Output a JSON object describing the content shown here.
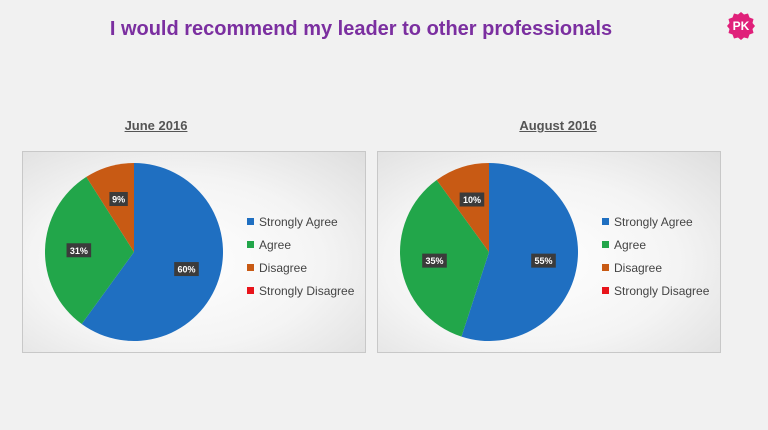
{
  "page": {
    "title": "I would recommend my leader to other professionals"
  },
  "logo": {
    "text": "PK",
    "color": "#e0207a",
    "icon": "pk-logo-icon"
  },
  "colors": {
    "Strongly Agree": "#1f6fc1",
    "Agree": "#22a64a",
    "Disagree": "#c85a14",
    "Strongly Disagree": "#e8141b"
  },
  "chart_data": [
    {
      "type": "pie",
      "title": "June 2016",
      "categories": [
        "Strongly Agree",
        "Agree",
        "Disagree",
        "Strongly Disagree"
      ],
      "values": [
        60,
        31,
        9,
        0
      ],
      "labels": [
        "60%",
        "31%",
        "9%",
        ""
      ],
      "legend": "right",
      "start_angle": "12 o'clock, clockwise"
    },
    {
      "type": "pie",
      "title": "August 2016",
      "categories": [
        "Strongly Agree",
        "Agree",
        "Disagree",
        "Strongly Disagree"
      ],
      "values": [
        55,
        35,
        10,
        0
      ],
      "labels": [
        "55%",
        "35%",
        "10%",
        ""
      ],
      "legend": "right",
      "start_angle": "12 o'clock, clockwise"
    }
  ]
}
